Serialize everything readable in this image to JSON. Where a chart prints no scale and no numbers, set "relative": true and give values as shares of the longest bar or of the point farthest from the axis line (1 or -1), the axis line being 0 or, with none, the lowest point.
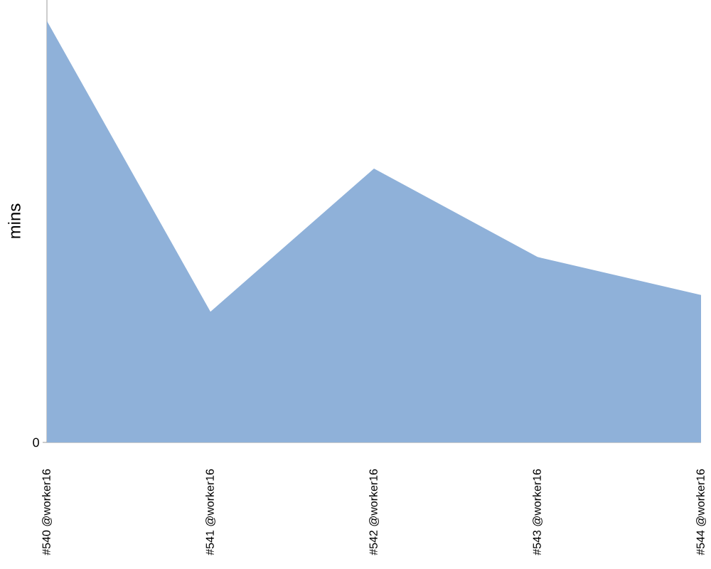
{
  "chart_data": {
    "type": "area",
    "ylabel": "mins",
    "categories": [
      "#540 @worker16",
      "#541 @worker16",
      "#542 @worker16",
      "#543 @worker16",
      "#544 @worker16"
    ],
    "values": [
      1,
      0.31,
      0.65,
      0.44,
      0.35
    ],
    "color": "#8fb1d9",
    "relative": true,
    "annotations": [
      "0"
    ]
  }
}
